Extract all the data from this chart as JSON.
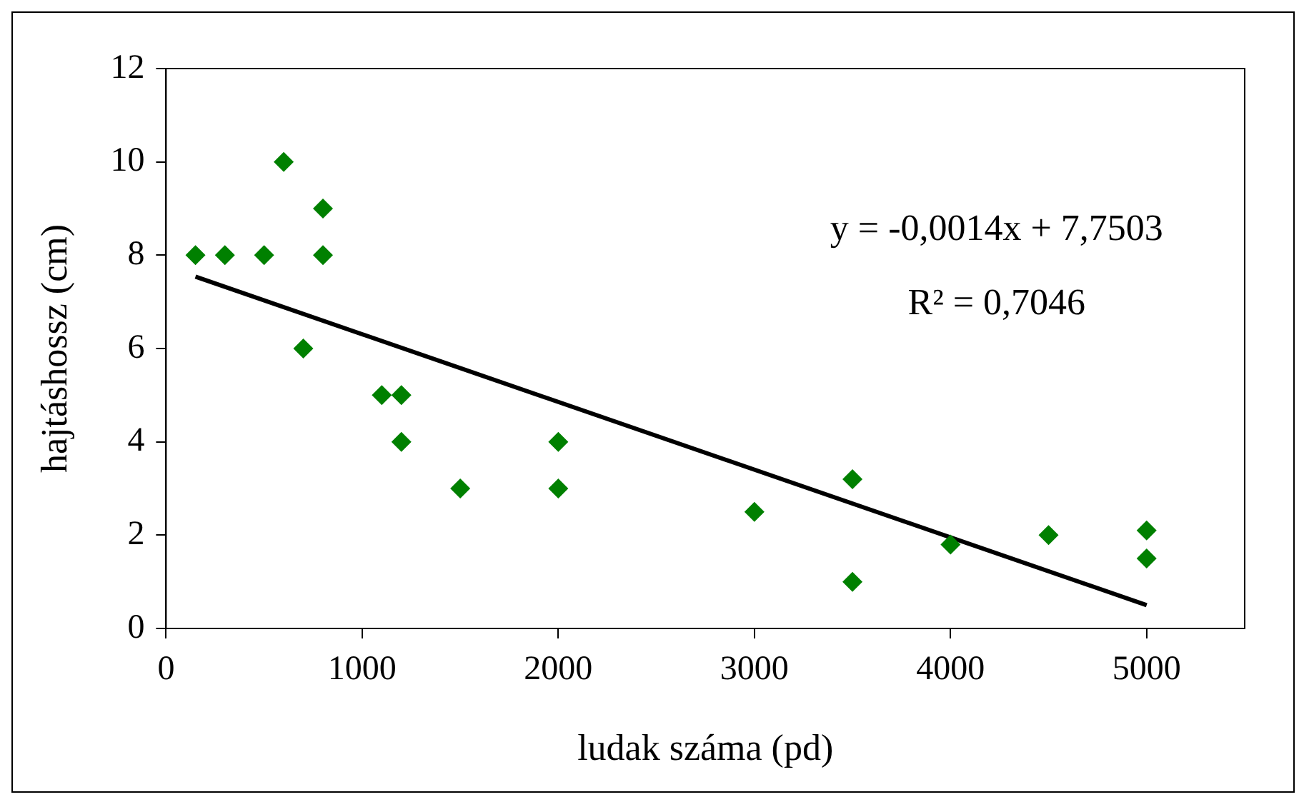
{
  "chart_data": {
    "type": "scatter",
    "xlabel": "ludak száma (pd)",
    "ylabel": "hajtáshossz (cm)",
    "x": [
      150,
      300,
      500,
      600,
      700,
      800,
      800,
      1100,
      1200,
      1200,
      1500,
      2000,
      2000,
      3000,
      3500,
      3500,
      4000,
      4500,
      5000,
      5000
    ],
    "series": [
      {
        "color": "#008000",
        "marker": "diamond",
        "values": [
          8,
          8,
          8,
          10,
          6,
          9,
          8,
          5,
          5,
          4,
          3,
          4,
          3,
          2.5,
          3.2,
          1,
          1.8,
          2,
          2.1,
          1.5
        ]
      },
      {
        "type": "line",
        "color": "#000000",
        "x": [
          150,
          5000
        ],
        "values": [
          7.54,
          0.5
        ]
      }
    ],
    "xlim": [
      0,
      5500
    ],
    "xticks": [
      0,
      1000,
      2000,
      3000,
      4000,
      5000
    ],
    "ylim": [
      0,
      12
    ],
    "yticks": [
      0,
      2,
      4,
      6,
      8,
      10,
      12
    ],
    "grid": false,
    "legend": false,
    "annotations": [
      "y = -0,0014x + 7,7503",
      "R² = 0,7046"
    ]
  }
}
